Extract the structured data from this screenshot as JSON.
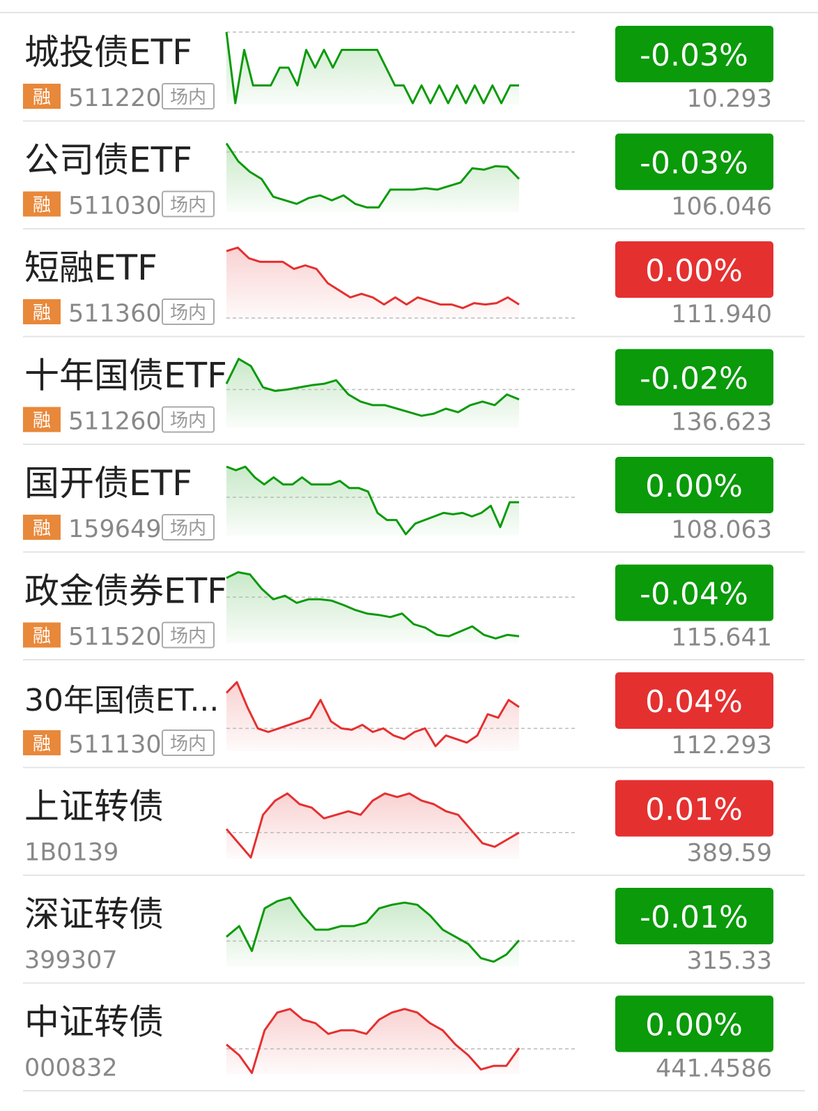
{
  "rows": [
    {
      "name": "城投债ETF",
      "margin": "融",
      "code": "511220",
      "market": "场内",
      "change": "-0.03%",
      "price": "10.293",
      "change_color": "#0a9a0a",
      "trend_color": "#0a9a0a",
      "baseline": 100,
      "trend": [
        100,
        0,
        75,
        25,
        25,
        25,
        50,
        50,
        25,
        75,
        50,
        75,
        50,
        75,
        75,
        75,
        75,
        75,
        50,
        25,
        25,
        0,
        25,
        0,
        25,
        0,
        25,
        0,
        25,
        0,
        25,
        0,
        25,
        25
      ]
    },
    {
      "name": "公司债ETF",
      "margin": "融",
      "code": "511030",
      "market": "场内",
      "change": "-0.03%",
      "price": "106.046",
      "change_color": "#0a9a0a",
      "trend_color": "#0a9a0a",
      "baseline": 83,
      "trend": [
        95,
        70,
        55,
        45,
        20,
        15,
        10,
        18,
        22,
        15,
        22,
        10,
        5,
        5,
        30,
        30,
        30,
        32,
        30,
        35,
        40,
        60,
        58,
        63,
        62,
        45
      ]
    },
    {
      "name": "短融ETF",
      "margin": "融",
      "code": "511360",
      "market": "场内",
      "change": "0.00%",
      "price": "111.940",
      "change_color": "#e53030",
      "trend_color": "#e53030",
      "baseline": 1,
      "trend": [
        95,
        100,
        85,
        80,
        80,
        80,
        70,
        75,
        70,
        50,
        40,
        30,
        35,
        30,
        20,
        30,
        20,
        30,
        25,
        20,
        20,
        15,
        22,
        20,
        22,
        30,
        20
      ]
    },
    {
      "name": "十年国债ETF",
      "margin": "融",
      "code": "511260",
      "market": "场内",
      "change": "-0.02%",
      "price": "136.623",
      "change_color": "#0a9a0a",
      "trend_color": "#0a9a0a",
      "baseline": 52,
      "trend": [
        60,
        95,
        85,
        55,
        50,
        52,
        55,
        58,
        60,
        65,
        45,
        35,
        30,
        30,
        25,
        20,
        15,
        18,
        25,
        20,
        30,
        35,
        30,
        45,
        38
      ]
    },
    {
      "name": "国开债ETF",
      "margin": "融",
      "code": "159649",
      "market": "场内",
      "change": "0.00%",
      "price": "108.063",
      "change_color": "#0a9a0a",
      "trend_color": "#0a9a0a",
      "baseline": 52,
      "trend": [
        95,
        90,
        95,
        80,
        70,
        80,
        70,
        70,
        80,
        70,
        70,
        70,
        75,
        65,
        65,
        60,
        30,
        20,
        20,
        0,
        15,
        20,
        25,
        30,
        28,
        30,
        25,
        30,
        40,
        10,
        45,
        45
      ]
    },
    {
      "name": "政金债券ETF",
      "margin": "融",
      "code": "511520",
      "market": "场内",
      "change": "-0.04%",
      "price": "115.641",
      "change_color": "#0a9a0a",
      "trend_color": "#0a9a0a",
      "baseline": 63,
      "trend": [
        90,
        98,
        95,
        75,
        60,
        65,
        55,
        60,
        60,
        58,
        52,
        45,
        40,
        38,
        35,
        40,
        25,
        20,
        10,
        8,
        15,
        22,
        10,
        5,
        10,
        8
      ]
    },
    {
      "name": "30年国债ET...",
      "margin": "融",
      "code": "511130",
      "market": "场内",
      "change": "0.04%",
      "price": "112.293",
      "change_color": "#e53030",
      "trend_color": "#e53030",
      "baseline": 30,
      "trend": [
        80,
        95,
        60,
        30,
        25,
        30,
        35,
        40,
        45,
        70,
        40,
        30,
        28,
        35,
        25,
        30,
        20,
        15,
        25,
        30,
        5,
        20,
        15,
        10,
        20,
        50,
        45,
        70,
        60
      ]
    },
    {
      "name": "上证转债",
      "code": "1B0139",
      "change": "0.01%",
      "price": "389.59",
      "change_color": "#e53030",
      "trend_color": "#e53030",
      "baseline": 35,
      "trend": [
        40,
        20,
        0,
        60,
        80,
        90,
        75,
        70,
        55,
        60,
        65,
        60,
        80,
        90,
        85,
        90,
        80,
        75,
        65,
        60,
        40,
        20,
        15,
        25,
        35
      ]
    },
    {
      "name": "深证转债",
      "code": "399307",
      "change": "-0.01%",
      "price": "315.33",
      "change_color": "#0a9a0a",
      "trend_color": "#0a9a0a",
      "baseline": 34,
      "trend": [
        40,
        55,
        20,
        80,
        90,
        95,
        70,
        50,
        50,
        55,
        55,
        60,
        80,
        85,
        88,
        85,
        70,
        50,
        40,
        30,
        10,
        5,
        15,
        35
      ]
    },
    {
      "name": "中证转债",
      "code": "000832",
      "change": "0.00%",
      "price": "441.4586",
      "change_color": "#0a9a0a",
      "trend_color": "#e53030",
      "baseline": 34,
      "trend": [
        40,
        25,
        0,
        60,
        85,
        90,
        75,
        70,
        55,
        60,
        60,
        55,
        75,
        85,
        90,
        85,
        70,
        60,
        40,
        25,
        5,
        10,
        10,
        35
      ]
    }
  ]
}
